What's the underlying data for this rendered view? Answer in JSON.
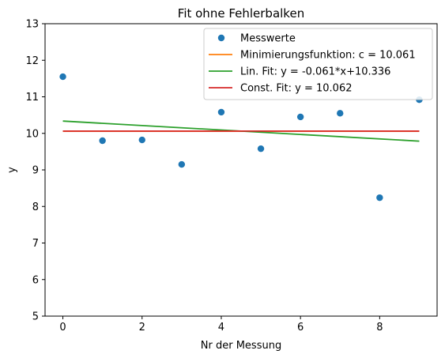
{
  "chart_data": {
    "type": "scatter",
    "title": "Fit ohne Fehlerbalken",
    "xlabel": "Nr der Messung",
    "ylabel": "y",
    "xlim": [
      -0.45,
      9.45
    ],
    "ylim": [
      5,
      13
    ],
    "xticks": [
      0,
      2,
      4,
      6,
      8
    ],
    "yticks": [
      5,
      6,
      7,
      8,
      9,
      10,
      11,
      12,
      13
    ],
    "grid": false,
    "legend_position": "top-right",
    "series": [
      {
        "name": "Messwerte",
        "kind": "scatter",
        "color": "#1f77b4",
        "x": [
          0,
          1,
          2,
          3,
          4,
          5,
          6,
          7,
          8,
          9
        ],
        "y": [
          11.55,
          9.8,
          9.82,
          9.15,
          10.58,
          9.58,
          10.45,
          10.55,
          8.24,
          10.92
        ]
      },
      {
        "name": "Minimierungsfunktion: c = 10.061",
        "kind": "line",
        "color": "#ff7f0e",
        "x": [
          0,
          9
        ],
        "y": [
          10.061,
          10.061
        ]
      },
      {
        "name": "Lin. Fit: y = -0.061*x+10.336",
        "kind": "line",
        "color": "#2ca02c",
        "x": [
          0,
          9
        ],
        "y": [
          10.336,
          9.787
        ]
      },
      {
        "name": "Const. Fit: y = 10.062",
        "kind": "line",
        "color": "#d62728",
        "x": [
          0,
          9
        ],
        "y": [
          10.062,
          10.062
        ]
      }
    ]
  }
}
